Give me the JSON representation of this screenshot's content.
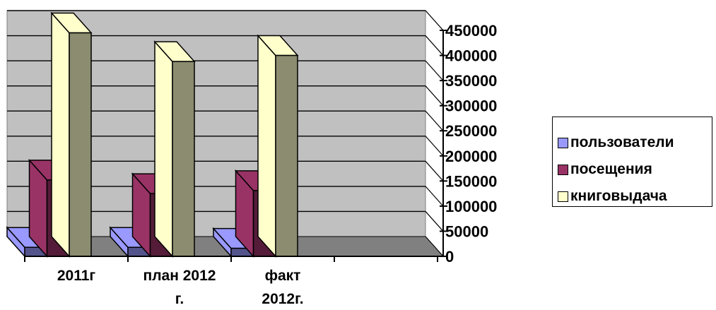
{
  "chart_data": {
    "type": "bar",
    "subtype": "3d-clustered-column",
    "categories": [
      [
        "2011г"
      ],
      [
        "план 2012",
        "г."
      ],
      [
        "факт",
        "2012г."
      ]
    ],
    "series": [
      {
        "name": "пользователи",
        "values": [
          18000,
          18000,
          16000
        ],
        "color": "#9999FF"
      },
      {
        "name": "посещения",
        "values": [
          152000,
          125000,
          131000
        ],
        "color": "#993366"
      },
      {
        "name": "книговыдача",
        "values": [
          445000,
          388000,
          400000
        ],
        "color": "#FFFFCC"
      }
    ],
    "y_ticks": [
      "0",
      "50000",
      "100000",
      "150000",
      "200000",
      "250000",
      "300000",
      "350000",
      "400000",
      "450000"
    ],
    "ylim": [
      0,
      450000
    ],
    "y_axis_side": "right",
    "grid": true,
    "legend_position": "right",
    "wall_color": "#C0C0C0",
    "floor_color": "#808080"
  }
}
